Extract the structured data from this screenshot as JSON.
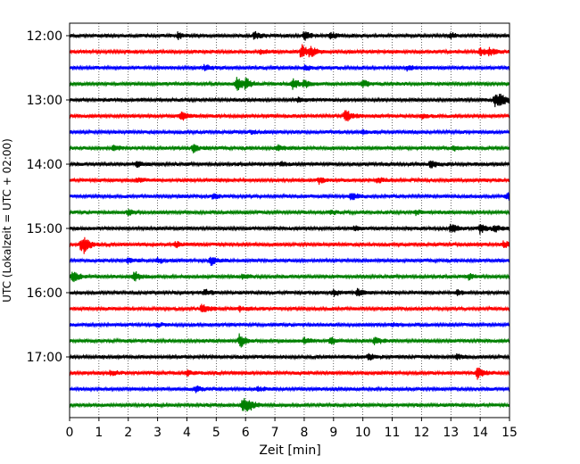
{
  "chart_data": {
    "type": "line",
    "title": "",
    "xlabel": "Zeit  [min]",
    "ylabel": "UTC (Lokalzeit = UTC + 02:00)",
    "xlim": [
      0,
      15
    ],
    "x_ticks": [
      0,
      1,
      2,
      3,
      4,
      5,
      6,
      7,
      8,
      9,
      10,
      11,
      12,
      13,
      14,
      15
    ],
    "x_tick_labels": [
      "0",
      "1",
      "2",
      "3",
      "4",
      "5",
      "6",
      "7",
      "8",
      "9",
      "10",
      "11",
      "12",
      "13",
      "14",
      "15"
    ],
    "y_tick_labels": [
      "12:00",
      "13:00",
      "14:00",
      "15:00",
      "16:00",
      "17:00"
    ],
    "vertical_grid": true,
    "trace_interval_min": 15,
    "trace_colors": [
      "#000000",
      "#ff0000",
      "#0000ff",
      "#008000"
    ],
    "traces": [
      {
        "start": "12:00",
        "color": "#000000",
        "events": [
          [
            3.7,
            0.4
          ],
          [
            6.3,
            0.4
          ],
          [
            8.0,
            0.6
          ],
          [
            8.9,
            0.4
          ],
          [
            13.0,
            0.3
          ]
        ]
      },
      {
        "start": "12:15",
        "color": "#ff0000",
        "events": [
          [
            6.5,
            0.3
          ],
          [
            7.9,
            0.9
          ],
          [
            8.2,
            0.5
          ],
          [
            14.0,
            0.4
          ],
          [
            14.3,
            0.4
          ]
        ]
      },
      {
        "start": "12:30",
        "color": "#0000ff",
        "events": [
          [
            4.6,
            0.35
          ],
          [
            8.0,
            0.3
          ],
          [
            11.5,
            0.3
          ]
        ]
      },
      {
        "start": "12:45",
        "color": "#008000",
        "events": [
          [
            5.7,
            0.9
          ],
          [
            6.0,
            0.5
          ],
          [
            7.6,
            0.7
          ],
          [
            8.0,
            0.45
          ],
          [
            10.0,
            0.4
          ]
        ]
      },
      {
        "start": "13:00",
        "color": "#000000",
        "events": [
          [
            14.5,
            0.9
          ],
          [
            14.7,
            0.6
          ],
          [
            7.8,
            0.25
          ]
        ]
      },
      {
        "start": "13:15",
        "color": "#ff0000",
        "events": [
          [
            3.8,
            0.6
          ],
          [
            9.4,
            0.8
          ],
          [
            12.0,
            0.25
          ]
        ]
      },
      {
        "start": "13:30",
        "color": "#0000ff",
        "events": [
          [
            6.2,
            0.2
          ],
          [
            10.0,
            0.2
          ]
        ]
      },
      {
        "start": "13:45",
        "color": "#008000",
        "events": [
          [
            1.5,
            0.35
          ],
          [
            4.2,
            0.5
          ],
          [
            7.1,
            0.3
          ],
          [
            13.1,
            0.3
          ]
        ]
      },
      {
        "start": "14:00",
        "color": "#000000",
        "events": [
          [
            2.3,
            0.35
          ],
          [
            7.2,
            0.3
          ],
          [
            12.3,
            0.5
          ]
        ]
      },
      {
        "start": "14:15",
        "color": "#ff0000",
        "events": [
          [
            2.3,
            0.3
          ],
          [
            8.5,
            0.35
          ],
          [
            10.5,
            0.35
          ]
        ]
      },
      {
        "start": "14:30",
        "color": "#0000ff",
        "events": [
          [
            4.9,
            0.3
          ],
          [
            9.6,
            0.45
          ],
          [
            14.9,
            0.4
          ]
        ]
      },
      {
        "start": "14:45",
        "color": "#008000",
        "events": [
          [
            2.0,
            0.3
          ],
          [
            8.9,
            0.25
          ],
          [
            11.8,
            0.3
          ]
        ]
      },
      {
        "start": "15:00",
        "color": "#000000",
        "events": [
          [
            13.0,
            0.55
          ],
          [
            14.0,
            0.6
          ],
          [
            14.5,
            0.35
          ],
          [
            9.7,
            0.25
          ]
        ]
      },
      {
        "start": "15:15",
        "color": "#ff0000",
        "events": [
          [
            0.4,
            0.9
          ],
          [
            0.5,
            0.6
          ],
          [
            3.6,
            0.35
          ],
          [
            14.8,
            0.4
          ]
        ]
      },
      {
        "start": "15:30",
        "color": "#0000ff",
        "events": [
          [
            4.8,
            0.6
          ],
          [
            2.0,
            0.3
          ],
          [
            3.0,
            0.3
          ]
        ]
      },
      {
        "start": "15:45",
        "color": "#008000",
        "events": [
          [
            0.1,
            0.8
          ],
          [
            2.2,
            0.6
          ],
          [
            5.9,
            0.3
          ],
          [
            13.6,
            0.35
          ]
        ]
      },
      {
        "start": "16:00",
        "color": "#000000",
        "events": [
          [
            4.6,
            0.35
          ],
          [
            9.0,
            0.35
          ],
          [
            9.8,
            0.45
          ],
          [
            13.2,
            0.3
          ]
        ]
      },
      {
        "start": "16:15",
        "color": "#ff0000",
        "events": [
          [
            4.5,
            0.7
          ],
          [
            5.8,
            0.25
          ]
        ]
      },
      {
        "start": "16:30",
        "color": "#0000ff",
        "events": [
          [
            3.0,
            0.2
          ],
          [
            11.0,
            0.2
          ]
        ]
      },
      {
        "start": "16:45",
        "color": "#008000",
        "events": [
          [
            5.8,
            0.9
          ],
          [
            8.0,
            0.35
          ],
          [
            8.9,
            0.5
          ],
          [
            10.4,
            0.45
          ]
        ]
      },
      {
        "start": "17:00",
        "color": "#000000",
        "events": [
          [
            10.2,
            0.35
          ],
          [
            13.2,
            0.3
          ]
        ]
      },
      {
        "start": "17:15",
        "color": "#ff0000",
        "events": [
          [
            1.4,
            0.3
          ],
          [
            4.0,
            0.3
          ],
          [
            13.9,
            0.7
          ]
        ]
      },
      {
        "start": "17:30",
        "color": "#0000ff",
        "events": [
          [
            4.3,
            0.35
          ],
          [
            6.4,
            0.25
          ]
        ]
      },
      {
        "start": "17:45",
        "color": "#008000",
        "events": [
          [
            5.9,
            1.0
          ],
          [
            6.1,
            0.5
          ]
        ]
      }
    ]
  }
}
